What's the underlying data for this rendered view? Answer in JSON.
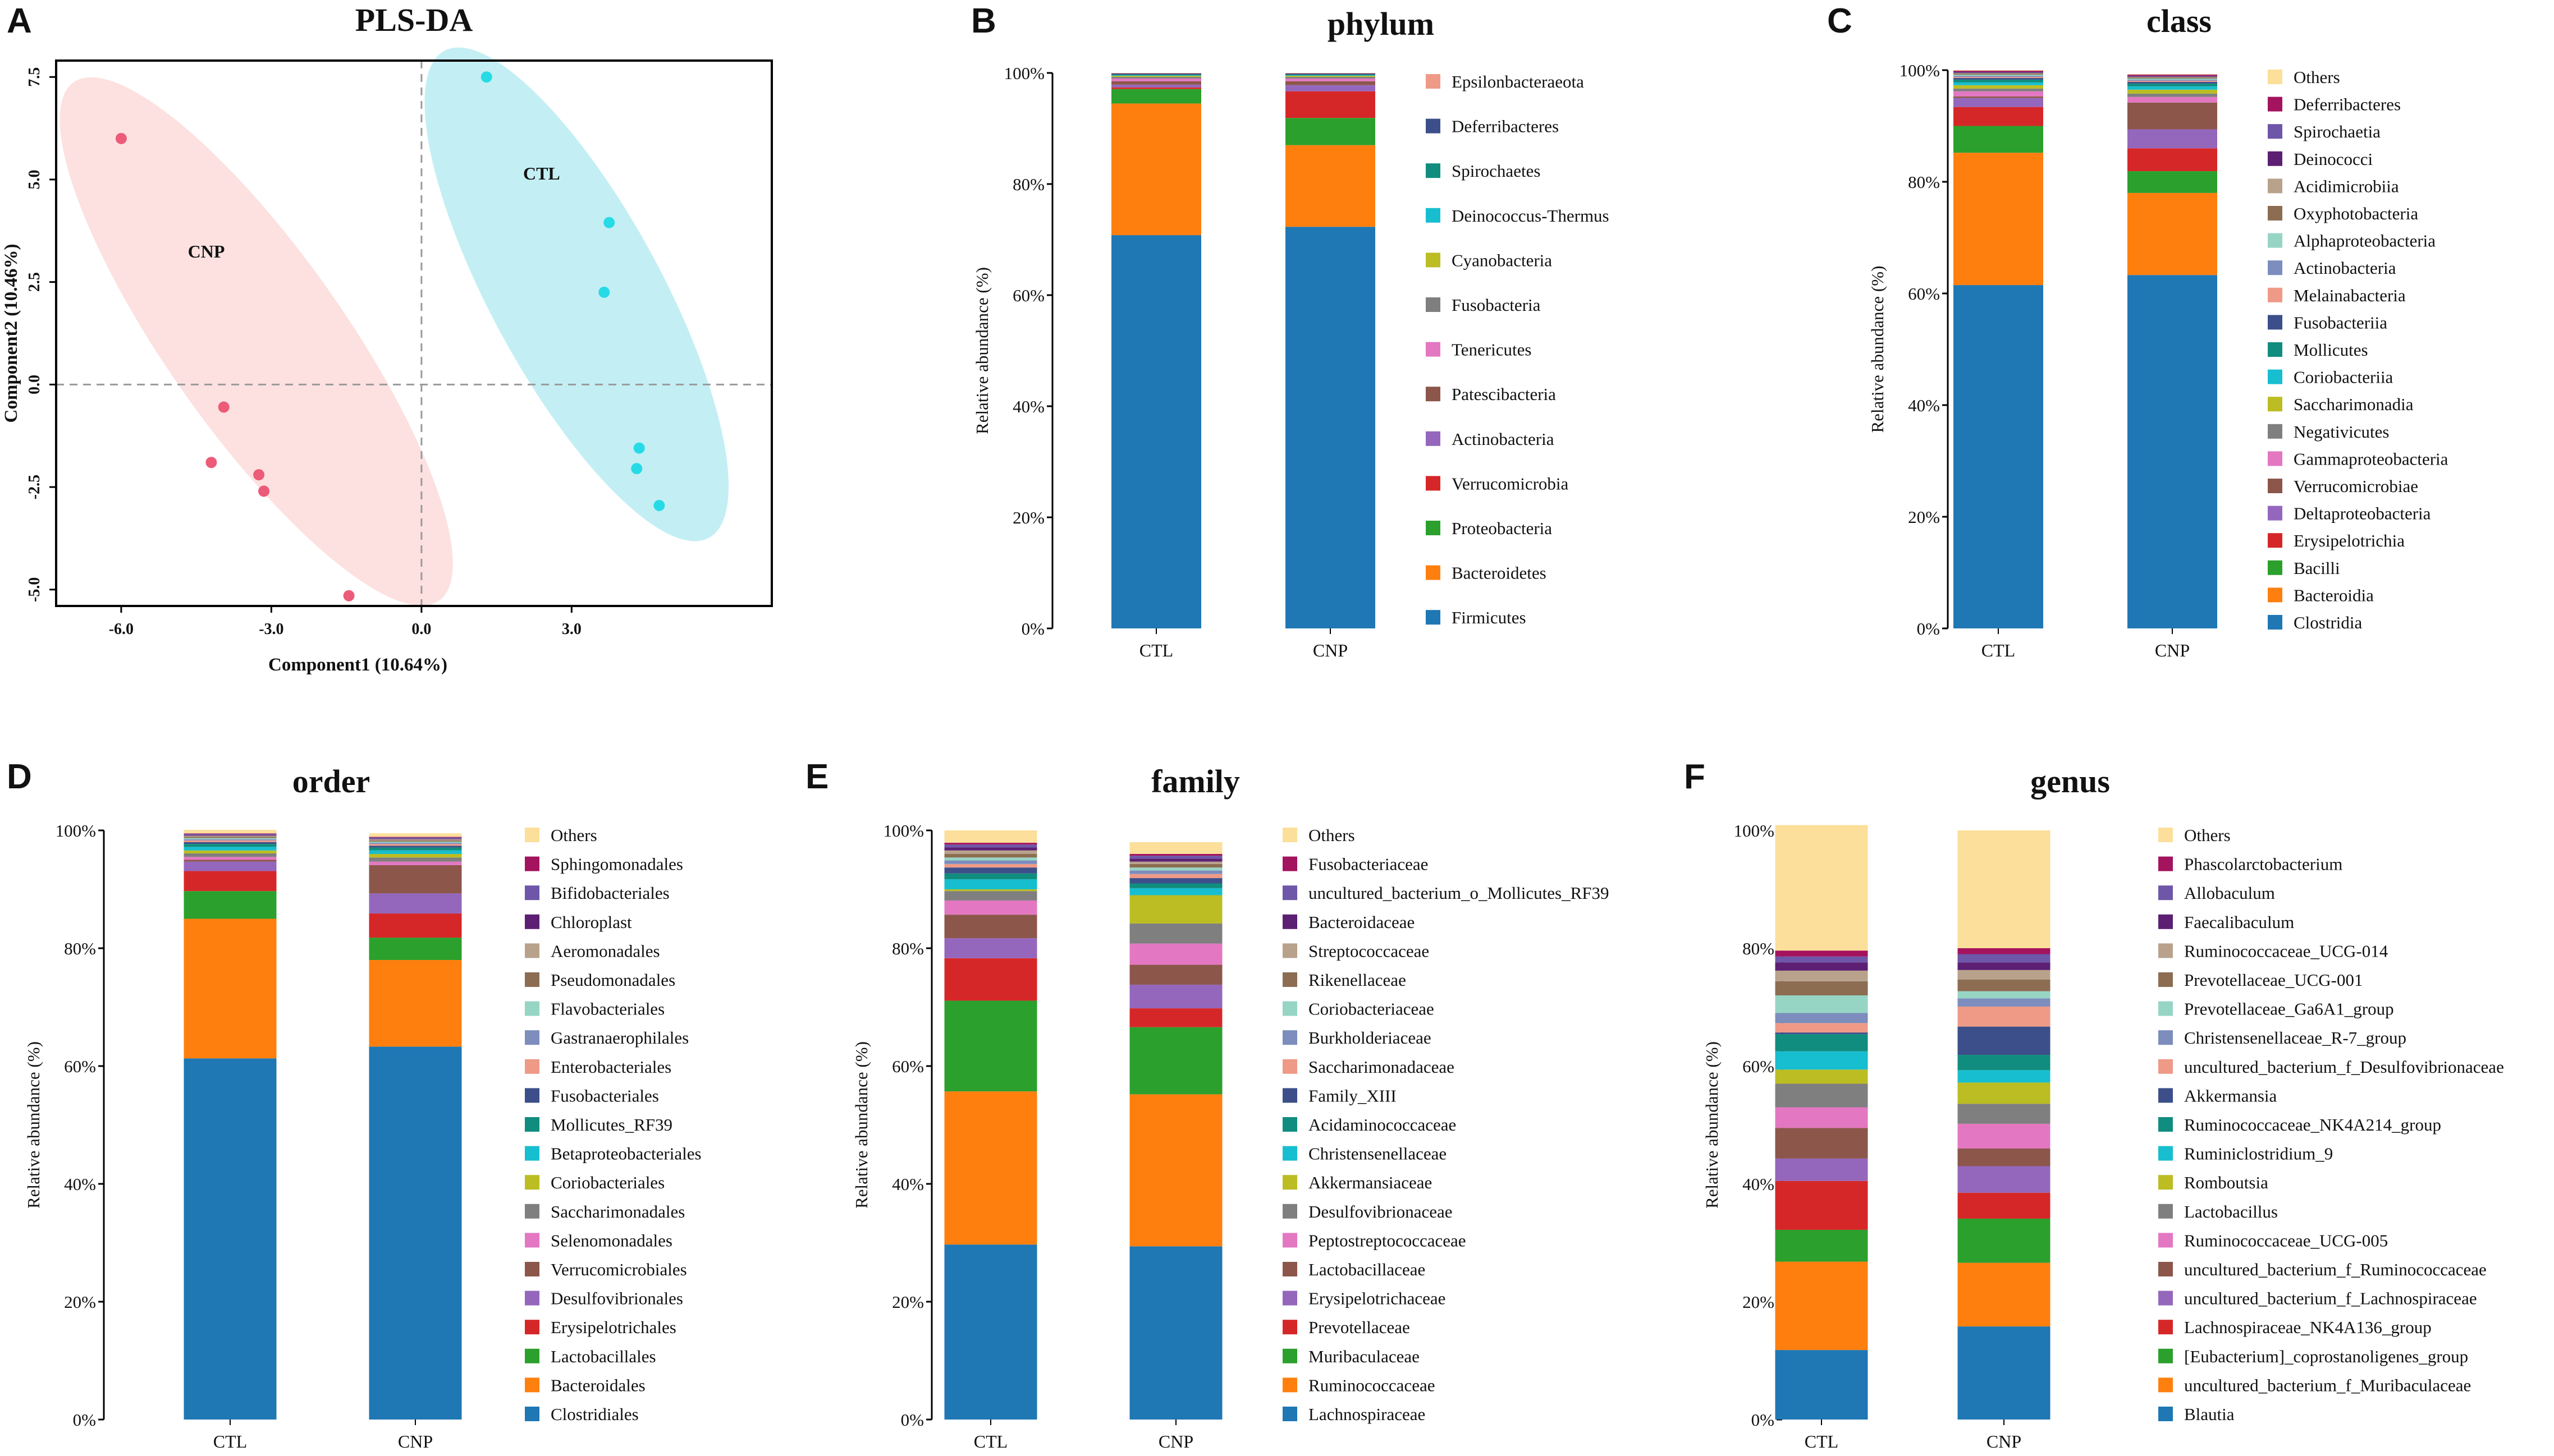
{
  "colors": {
    "palette": [
      "#1f77b4",
      "#ff7f0e",
      "#2ca02c",
      "#d62728",
      "#9467bd",
      "#8c564b",
      "#e377c2",
      "#7f7f7f",
      "#bcbd22",
      "#17becf",
      "#108d7e",
      "#3c4f8a",
      "#ee9a87",
      "#7c8dbe",
      "#96d5c4",
      "#8c6d52",
      "#b8a28c",
      "#5c1f73",
      "#6e56a8",
      "#a4135e"
    ],
    "others": "#fbdf9a",
    "ctl_point": "#26dbe6",
    "cnp_point": "#ec5b78",
    "ctl_ellipse": "#b8ecf2",
    "cnp_ellipse": "#fbdcdb"
  },
  "pls_da": {
    "letter": "A",
    "title": "PLS-DA",
    "xlabel": "Component1 (10.64%)",
    "ylabel": "Component2 (10.46%)",
    "xlim": [
      -7.3,
      7.0
    ],
    "ylim": [
      -5.4,
      7.9
    ],
    "xticks": [
      {
        "v": -6.0,
        "label": "-6.0"
      },
      {
        "v": -3.0,
        "label": "-3.0"
      },
      {
        "v": 0.0,
        "label": "0.0"
      },
      {
        "v": 3.0,
        "label": "3.0"
      }
    ],
    "yticks": [
      {
        "v": -5.0,
        "label": "-5.0"
      },
      {
        "v": -2.5,
        "label": "-2.5"
      },
      {
        "v": 0.0,
        "label": "0.0"
      },
      {
        "v": 2.5,
        "label": "2.5"
      },
      {
        "v": 5.0,
        "label": "5.0"
      },
      {
        "v": 7.5,
        "label": "7.5"
      }
    ],
    "groups": [
      {
        "name": "CNP",
        "label_at": [
          -4.3,
          3.1
        ],
        "ellipse": {
          "cx": -3.3,
          "cy": 1.05,
          "rx": 7.3,
          "ry": 1.85,
          "angle_deg": -60
        },
        "points": [
          [
            -6.0,
            6.0
          ],
          [
            -3.95,
            -0.55
          ],
          [
            -4.2,
            -1.9
          ],
          [
            -3.25,
            -2.2
          ],
          [
            -3.15,
            -2.6
          ],
          [
            -1.45,
            -5.15
          ]
        ]
      },
      {
        "name": "CTL",
        "label_at": [
          2.4,
          5.0
        ],
        "ellipse": {
          "cx": 3.1,
          "cy": 2.2,
          "rx": 6.5,
          "ry": 1.75,
          "angle_deg": -66
        },
        "points": [
          [
            1.3,
            7.5
          ],
          [
            3.75,
            3.95
          ],
          [
            3.65,
            2.25
          ],
          [
            4.35,
            -1.55
          ],
          [
            4.3,
            -2.05
          ],
          [
            4.75,
            -2.95
          ]
        ]
      }
    ]
  },
  "chart_data": [
    {
      "letter": "B",
      "title": "phylum",
      "type": "bar",
      "stacked": true,
      "categories": [
        "CTL",
        "CNP"
      ],
      "ylabel": "Relative abundance (%)",
      "ylim": [
        0,
        100
      ],
      "yticks": [
        "0%",
        "20%",
        "40%",
        "60%",
        "80%",
        "100%"
      ],
      "series": [
        {
          "name": "Firmicutes",
          "values": [
            70.8,
            72.3
          ]
        },
        {
          "name": "Bacteroidetes",
          "values": [
            23.7,
            14.7
          ]
        },
        {
          "name": "Proteobacteria",
          "values": [
            2.6,
            4.9
          ]
        },
        {
          "name": "Verrucomicrobia",
          "values": [
            0.3,
            4.8
          ]
        },
        {
          "name": "Actinobacteria",
          "values": [
            0.5,
            1.1
          ]
        },
        {
          "name": "Patescibacteria",
          "values": [
            0.6,
            0.7
          ]
        },
        {
          "name": "Tenericutes",
          "values": [
            0.5,
            0.5
          ]
        },
        {
          "name": "Fusobacteria",
          "values": [
            0.3,
            0.3
          ]
        },
        {
          "name": "Cyanobacteria",
          "values": [
            0.2,
            0.2
          ]
        },
        {
          "name": "Deinococcus-Thermus",
          "values": [
            0.1,
            0.1
          ]
        },
        {
          "name": "Spirochaetes",
          "values": [
            0.1,
            0.1
          ]
        },
        {
          "name": "Deferribacteres",
          "values": [
            0.2,
            0.2
          ]
        },
        {
          "name": "Epsilonbacteraeota",
          "values": [
            0.1,
            0.1
          ]
        }
      ]
    },
    {
      "letter": "C",
      "title": "class",
      "type": "bar",
      "stacked": true,
      "categories": [
        "CTL",
        "CNP"
      ],
      "ylabel": "Relative abundance (%)",
      "ylim": [
        0,
        100
      ],
      "yticks": [
        "0%",
        "20%",
        "40%",
        "60%",
        "80%",
        "100%"
      ],
      "series": [
        {
          "name": "Clostridia",
          "values": [
            61.5,
            63.3
          ]
        },
        {
          "name": "Bacteroidia",
          "values": [
            23.7,
            14.7
          ]
        },
        {
          "name": "Bacilli",
          "values": [
            4.8,
            3.9
          ]
        },
        {
          "name": "Erysipelotrichia",
          "values": [
            3.4,
            4.1
          ]
        },
        {
          "name": "Deltaproteobacteria",
          "values": [
            1.6,
            3.4
          ]
        },
        {
          "name": "Verrucomicrobiae",
          "values": [
            0.3,
            4.8
          ]
        },
        {
          "name": "Gammaproteobacteria",
          "values": [
            0.9,
            1.0
          ]
        },
        {
          "name": "Negativicutes",
          "values": [
            0.5,
            0.6
          ]
        },
        {
          "name": "Saccharimonadia",
          "values": [
            0.6,
            0.7
          ]
        },
        {
          "name": "Coriobacteriia",
          "values": [
            0.5,
            0.6
          ]
        },
        {
          "name": "Mollicutes",
          "values": [
            0.5,
            0.5
          ]
        },
        {
          "name": "Fusobacteriia",
          "values": [
            0.3,
            0.3
          ]
        },
        {
          "name": "Melainabacteria",
          "values": [
            0.2,
            0.2
          ]
        },
        {
          "name": "Actinobacteria",
          "values": [
            0.2,
            0.2
          ]
        },
        {
          "name": "Alphaproteobacteria",
          "values": [
            0.2,
            0.2
          ]
        },
        {
          "name": "Oxyphotobacteria",
          "values": [
            0.2,
            0.2
          ]
        },
        {
          "name": "Acidimicrobiia",
          "values": [
            0.1,
            0.1
          ]
        },
        {
          "name": "Deinococci",
          "values": [
            0.1,
            0.1
          ]
        },
        {
          "name": "Spirochaetia",
          "values": [
            0.1,
            0.1
          ]
        },
        {
          "name": "Deferribacteres",
          "values": [
            0.2,
            0.2
          ]
        },
        {
          "name": "Others",
          "values": [
            0.1,
            0.1
          ]
        }
      ]
    },
    {
      "letter": "D",
      "title": "order",
      "type": "bar",
      "stacked": true,
      "categories": [
        "CTL",
        "CNP"
      ],
      "ylabel": "Relative abundance (%)",
      "ylim": [
        0,
        100
      ],
      "yticks": [
        "0%",
        "20%",
        "40%",
        "60%",
        "80%",
        "100%"
      ],
      "series": [
        {
          "name": "Clostridiales",
          "values": [
            61.3,
            63.3
          ]
        },
        {
          "name": "Bacteroidales",
          "values": [
            23.7,
            14.7
          ]
        },
        {
          "name": "Lactobacillales",
          "values": [
            4.7,
            3.8
          ]
        },
        {
          "name": "Erysipelotrichales",
          "values": [
            3.4,
            4.1
          ]
        },
        {
          "name": "Desulfovibrionales",
          "values": [
            1.6,
            3.4
          ]
        },
        {
          "name": "Verrucomicrobiales",
          "values": [
            0.3,
            4.8
          ]
        },
        {
          "name": "Selenomonadales",
          "values": [
            0.5,
            0.6
          ]
        },
        {
          "name": "Saccharimonadales",
          "values": [
            0.6,
            0.7
          ]
        },
        {
          "name": "Coriobacteriales",
          "values": [
            0.5,
            0.6
          ]
        },
        {
          "name": "Betaproteobacteriales",
          "values": [
            0.6,
            0.6
          ]
        },
        {
          "name": "Mollicutes_RF39",
          "values": [
            0.5,
            0.5
          ]
        },
        {
          "name": "Fusobacteriales",
          "values": [
            0.3,
            0.3
          ]
        },
        {
          "name": "Enterobacteriales",
          "values": [
            0.3,
            0.3
          ]
        },
        {
          "name": "Gastranaerophilales",
          "values": [
            0.2,
            0.2
          ]
        },
        {
          "name": "Flavobacteriales",
          "values": [
            0.2,
            0.2
          ]
        },
        {
          "name": "Pseudomonadales",
          "values": [
            0.2,
            0.2
          ]
        },
        {
          "name": "Aeromonadales",
          "values": [
            0.2,
            0.2
          ]
        },
        {
          "name": "Chloroplast",
          "values": [
            0.1,
            0.1
          ]
        },
        {
          "name": "Bifidobacteriales",
          "values": [
            0.2,
            0.2
          ]
        },
        {
          "name": "Sphingomonadales",
          "values": [
            0.1,
            0.1
          ]
        },
        {
          "name": "Others",
          "values": [
            0.6,
            0.6
          ]
        }
      ]
    },
    {
      "letter": "E",
      "title": "family",
      "type": "bar",
      "stacked": true,
      "categories": [
        "CTL",
        "CNP"
      ],
      "ylabel": "Relative abundance (%)",
      "ylim": [
        0,
        100
      ],
      "yticks": [
        "0%",
        "20%",
        "40%",
        "60%",
        "80%",
        "100%"
      ],
      "series": [
        {
          "name": "Lachnospiraceae",
          "values": [
            29.7,
            29.4
          ]
        },
        {
          "name": "Ruminococcaceae",
          "values": [
            26.0,
            25.8
          ]
        },
        {
          "name": "Muribaculaceae",
          "values": [
            15.4,
            11.4
          ]
        },
        {
          "name": "Prevotellaceae",
          "values": [
            7.2,
            3.2
          ]
        },
        {
          "name": "Erysipelotrichaceae",
          "values": [
            3.4,
            4.0
          ]
        },
        {
          "name": "Lactobacillaceae",
          "values": [
            4.0,
            3.4
          ]
        },
        {
          "name": "Peptostreptococcaceae",
          "values": [
            2.4,
            3.6
          ]
        },
        {
          "name": "Desulfovibrionaceae",
          "values": [
            1.6,
            3.4
          ]
        },
        {
          "name": "Akkermansiaceae",
          "values": [
            0.3,
            4.8
          ]
        },
        {
          "name": "Christensenellaceae",
          "values": [
            1.7,
            1.2
          ]
        },
        {
          "name": "Acidaminococcaceae",
          "values": [
            1.0,
            0.8
          ]
        },
        {
          "name": "Family_XIII",
          "values": [
            1.0,
            0.9
          ]
        },
        {
          "name": "Saccharimonadaceae",
          "values": [
            0.6,
            0.7
          ]
        },
        {
          "name": "Burkholderiaceae",
          "values": [
            0.6,
            0.6
          ]
        },
        {
          "name": "Coriobacteriaceae",
          "values": [
            0.5,
            0.5
          ]
        },
        {
          "name": "Rikenellaceae",
          "values": [
            0.6,
            0.6
          ]
        },
        {
          "name": "Streptococcaceae",
          "values": [
            0.6,
            0.4
          ]
        },
        {
          "name": "Bacteroidaceae",
          "values": [
            0.5,
            0.5
          ]
        },
        {
          "name": "uncultured_bacterium_o_Mollicutes_RF39",
          "values": [
            0.5,
            0.5
          ]
        },
        {
          "name": "Fusobacteriaceae",
          "values": [
            0.3,
            0.3
          ]
        },
        {
          "name": "Others",
          "values": [
            2.1,
            2.0
          ]
        }
      ]
    },
    {
      "letter": "F",
      "title": "genus",
      "type": "bar",
      "stacked": true,
      "categories": [
        "CTL",
        "CNP"
      ],
      "ylabel": "Relative abundance (%)",
      "ylim": [
        0,
        100
      ],
      "yticks": [
        "0%",
        "20%",
        "40%",
        "60%",
        "80%",
        "100%"
      ],
      "series": [
        {
          "name": "Blautia",
          "values": [
            11.8,
            15.8
          ]
        },
        {
          "name": "uncultured_bacterium_f_Muribaculaceae",
          "values": [
            15.0,
            10.8
          ]
        },
        {
          "name": "[Eubacterium]_coprostanoligenes_group",
          "values": [
            5.4,
            7.5
          ]
        },
        {
          "name": "Lachnospiraceae_NK4A136_group",
          "values": [
            8.3,
            4.4
          ]
        },
        {
          "name": "uncultured_bacterium_f_Lachnospiraceae",
          "values": [
            3.8,
            4.5
          ]
        },
        {
          "name": "uncultured_bacterium_f_Ruminococcaceae",
          "values": [
            5.2,
            3.0
          ]
        },
        {
          "name": "Ruminococcaceae_UCG-005",
          "values": [
            3.5,
            4.2
          ]
        },
        {
          "name": "Lactobacillus",
          "values": [
            4.0,
            3.4
          ]
        },
        {
          "name": "Romboutsia",
          "values": [
            2.4,
            3.6
          ]
        },
        {
          "name": "Ruminiclostridium_9",
          "values": [
            3.1,
            2.1
          ]
        },
        {
          "name": "Ruminococcaceae_NK4A214_group",
          "values": [
            2.9,
            2.6
          ]
        },
        {
          "name": "Akkermansia",
          "values": [
            0.3,
            4.8
          ]
        },
        {
          "name": "uncultured_bacterium_f_Desulfovibrionaceae",
          "values": [
            1.6,
            3.4
          ]
        },
        {
          "name": "Christensenellaceae_R-7_group",
          "values": [
            1.7,
            1.4
          ]
        },
        {
          "name": "Prevotellaceae_Ga6A1_group",
          "values": [
            3.0,
            1.2
          ]
        },
        {
          "name": "Prevotellaceae_UCG-001",
          "values": [
            2.4,
            2.0
          ]
        },
        {
          "name": "Ruminococcaceae_UCG-014",
          "values": [
            1.8,
            1.6
          ]
        },
        {
          "name": "Faecalibaculum",
          "values": [
            1.4,
            1.3
          ]
        },
        {
          "name": "Allobaculum",
          "values": [
            1.0,
            1.4
          ]
        },
        {
          "name": "Phascolarctobacterium",
          "values": [
            1.0,
            1.0
          ]
        },
        {
          "name": "Others",
          "values": [
            21.3,
            20.0
          ]
        }
      ]
    }
  ]
}
